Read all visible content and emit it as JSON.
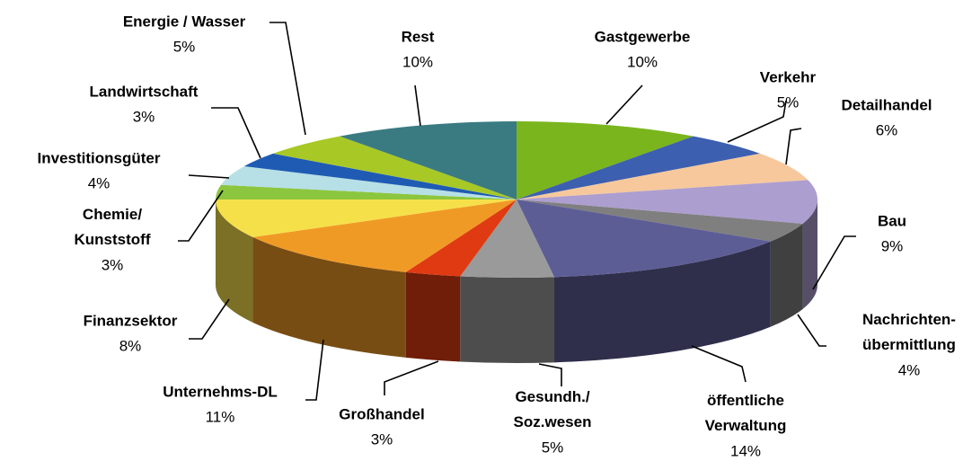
{
  "chart_data": {
    "type": "pie3d",
    "categories": [
      "Gastgewerbe",
      "Verkehr",
      "Detailhandel",
      "Bau",
      "Nachrichten-\nübermittlung",
      "öffentliche\nVerwaltung",
      "Gesundh./\nSoz.wesen",
      "Großhandel",
      "Unternehms-DL",
      "Finanzsektor",
      "Chemie/\nKunststoff",
      "Investitionsgüter",
      "Landwirtschaft",
      "Energie / Wasser",
      "Rest"
    ],
    "values": [
      10,
      5,
      6,
      9,
      4,
      14,
      5,
      3,
      11,
      8,
      3,
      4,
      3,
      5,
      10
    ],
    "value_labels": [
      "10%",
      "5%",
      "6%",
      "9%",
      "4%",
      "14%",
      "5%",
      "3%",
      "11%",
      "8%",
      "3%",
      "4%",
      "3%",
      "5%",
      "10%"
    ],
    "colors": [
      "#7ab51d",
      "#3d5fb0",
      "#f6c89c",
      "#ad9ed0",
      "#7f7f7f",
      "#5d5d96",
      "#9a9a9a",
      "#e03a12",
      "#f09a26",
      "#f6e04a",
      "#8cc63f",
      "#b7dfe6",
      "#1f5bb3",
      "#a8c826",
      "#3a7b82"
    ]
  }
}
